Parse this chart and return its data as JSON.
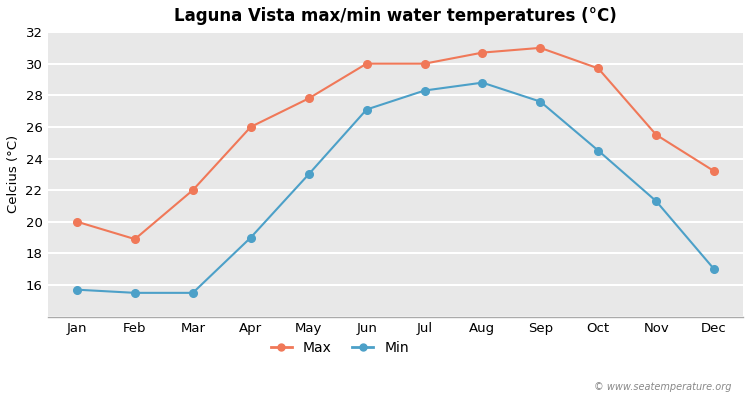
{
  "title": "Laguna Vista max/min water temperatures (°C)",
  "ylabel": "Celcius (°C)",
  "months": [
    "Jan",
    "Feb",
    "Mar",
    "Apr",
    "May",
    "Jun",
    "Jul",
    "Aug",
    "Sep",
    "Oct",
    "Nov",
    "Dec"
  ],
  "max_temps": [
    20.0,
    18.9,
    22.0,
    26.0,
    27.8,
    30.0,
    30.0,
    30.7,
    31.0,
    29.7,
    25.5,
    23.2
  ],
  "min_temps": [
    15.7,
    15.5,
    15.5,
    19.0,
    23.0,
    27.1,
    28.3,
    28.8,
    27.6,
    24.5,
    21.3,
    17.0
  ],
  "max_color": "#f07858",
  "min_color": "#4ca0c8",
  "ylim": [
    14,
    32
  ],
  "yticks": [
    14,
    16,
    18,
    20,
    22,
    24,
    26,
    28,
    30,
    32
  ],
  "bg_color": "#e8e8e8",
  "plot_bg_color": "#e0e0e0",
  "grid_color": "#f0f0f0",
  "watermark": "© www.seatemperature.org",
  "legend_max": "Max",
  "legend_min": "Min"
}
